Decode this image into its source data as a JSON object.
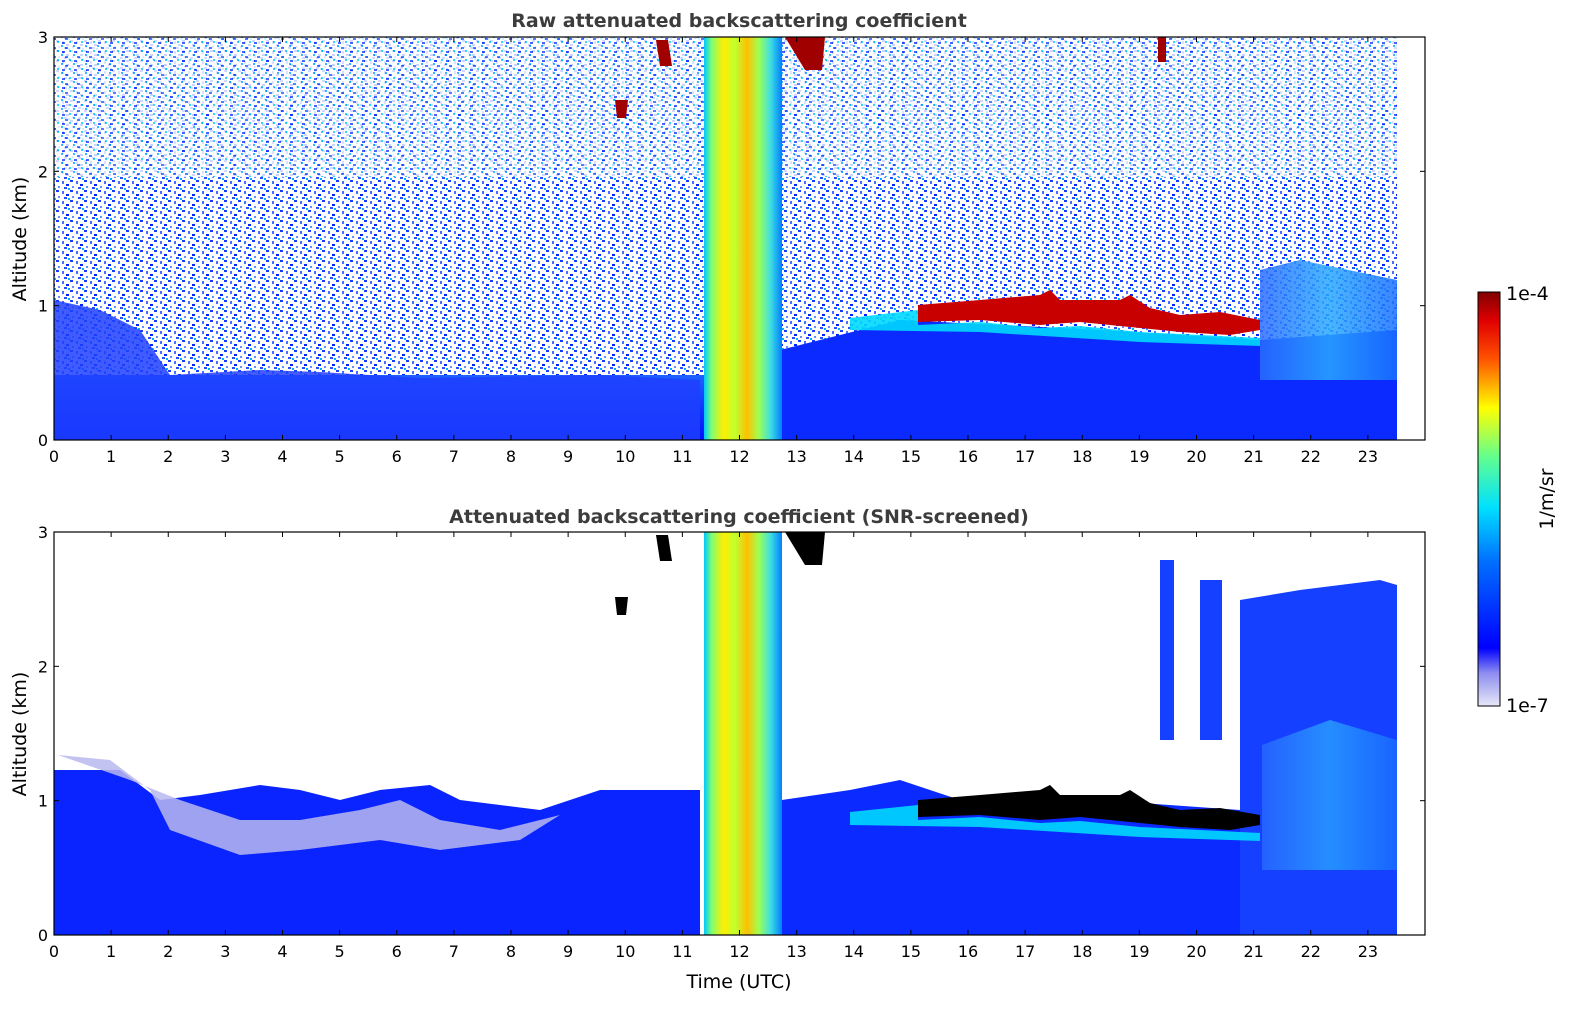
{
  "chart_data": [
    {
      "type": "heatmap",
      "title": "Raw attenuated backscattering coefficient",
      "xlabel": "",
      "ylabel": "Altitude (km)",
      "xlim": [
        0,
        24
      ],
      "ylim": [
        0,
        3
      ],
      "xticks": [
        "0",
        "1",
        "2",
        "3",
        "4",
        "5",
        "6",
        "7",
        "8",
        "9",
        "10",
        "11",
        "12",
        "13",
        "14",
        "15",
        "16",
        "17",
        "18",
        "19",
        "20",
        "21",
        "22",
        "23"
      ],
      "yticks": [
        "0",
        "1",
        "2",
        "3"
      ],
      "grid": false,
      "features": [
        {
          "name": "boundary-layer aerosol",
          "x": [
            0,
            23.5
          ],
          "y": [
            0,
            0.5
          ],
          "level": "low"
        },
        {
          "name": "precipitation shaft",
          "x": [
            11.4,
            12.7
          ],
          "y": [
            0,
            3
          ],
          "level": "high"
        },
        {
          "name": "cloud layer",
          "x": [
            15.1,
            21.0
          ],
          "y": [
            0.85,
            1.1
          ],
          "level": "max"
        },
        {
          "name": "elevated aerosol",
          "x": [
            21.1,
            23.5
          ],
          "y": [
            0,
            1.3
          ],
          "level": "medium"
        },
        {
          "name": "noise",
          "x": [
            0,
            23.5
          ],
          "y": [
            0.5,
            3
          ],
          "level": "noisy"
        }
      ]
    },
    {
      "type": "heatmap",
      "title": "Attenuated backscattering coefficient (SNR-screened)",
      "xlabel": "Time (UTC)",
      "ylabel": "Altitude (km)",
      "xlim": [
        0,
        24
      ],
      "ylim": [
        0,
        3
      ],
      "xticks": [
        "0",
        "1",
        "2",
        "3",
        "4",
        "5",
        "6",
        "7",
        "8",
        "9",
        "10",
        "11",
        "12",
        "13",
        "14",
        "15",
        "16",
        "17",
        "18",
        "19",
        "20",
        "21",
        "22",
        "23"
      ],
      "yticks": [
        "0",
        "1",
        "2",
        "3"
      ],
      "grid": false,
      "features": [
        {
          "name": "boundary-layer aerosol",
          "x": [
            0,
            23.5
          ],
          "y": [
            0,
            1.0
          ],
          "level": "low"
        },
        {
          "name": "precipitation shaft",
          "x": [
            11.4,
            12.7
          ],
          "y": [
            0,
            3
          ],
          "level": "high"
        },
        {
          "name": "cloud layer",
          "x": [
            15.1,
            21.0
          ],
          "y": [
            0.85,
            1.1
          ],
          "level": "saturated"
        },
        {
          "name": "elevated aerosol",
          "x": [
            21.1,
            23.5
          ],
          "y": [
            0,
            2.6
          ],
          "level": "low"
        }
      ]
    }
  ],
  "colorbar": {
    "label": "1/m/sr",
    "min_label": "1e-7",
    "max_label": "1e-4",
    "colormap": "jet",
    "low_color": "#e6e6f5",
    "high_color": "#800000"
  }
}
